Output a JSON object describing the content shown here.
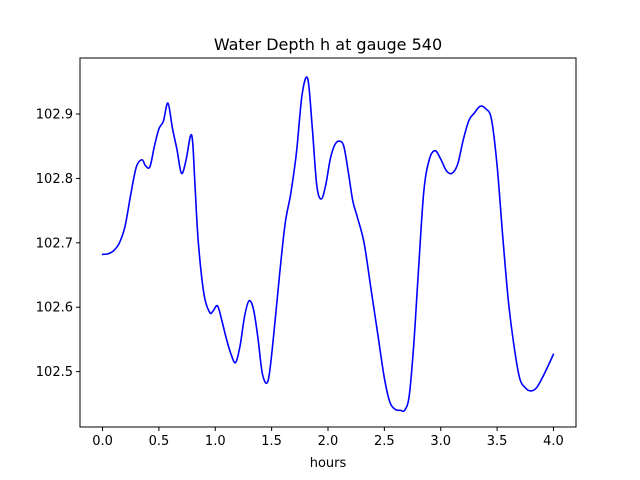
{
  "chart_data": {
    "type": "line",
    "title": "Water Depth h at gauge 540",
    "xlabel": "hours",
    "ylabel": "",
    "xlim": [
      -0.2,
      4.2
    ],
    "ylim": [
      102.414,
      102.987
    ],
    "x_ticks": [
      0.0,
      0.5,
      1.0,
      1.5,
      2.0,
      2.5,
      3.0,
      3.5,
      4.0
    ],
    "x_tick_labels": [
      "0.0",
      "0.5",
      "1.0",
      "1.5",
      "2.0",
      "2.5",
      "3.0",
      "3.5",
      "4.0"
    ],
    "y_ticks": [
      102.5,
      102.6,
      102.7,
      102.8,
      102.9
    ],
    "y_tick_labels": [
      "102.5",
      "102.6",
      "102.7",
      "102.8",
      "102.9"
    ],
    "grid": false,
    "legend": "none",
    "series": [
      {
        "color": "#0000ff",
        "x": [
          0.0,
          0.05,
          0.1,
          0.15,
          0.2,
          0.25,
          0.3,
          0.35,
          0.38,
          0.42,
          0.46,
          0.5,
          0.54,
          0.58,
          0.62,
          0.66,
          0.7,
          0.74,
          0.78,
          0.8,
          0.82,
          0.85,
          0.9,
          0.95,
          0.98,
          1.02,
          1.06,
          1.1,
          1.14,
          1.18,
          1.22,
          1.26,
          1.3,
          1.34,
          1.38,
          1.42,
          1.47,
          1.52,
          1.57,
          1.62,
          1.67,
          1.72,
          1.77,
          1.82,
          1.86,
          1.9,
          1.94,
          1.98,
          2.02,
          2.06,
          2.1,
          2.14,
          2.18,
          2.22,
          2.26,
          2.32,
          2.38,
          2.44,
          2.5,
          2.55,
          2.6,
          2.64,
          2.68,
          2.72,
          2.76,
          2.8,
          2.85,
          2.9,
          2.95,
          3.0,
          3.05,
          3.1,
          3.15,
          3.2,
          3.25,
          3.3,
          3.35,
          3.4,
          3.45,
          3.5,
          3.55,
          3.6,
          3.65,
          3.7,
          3.75,
          3.8,
          3.85,
          3.9,
          3.95,
          4.0
        ],
        "y": [
          102.682,
          102.683,
          102.688,
          102.7,
          102.726,
          102.775,
          102.818,
          102.829,
          102.82,
          102.818,
          102.85,
          102.877,
          102.889,
          102.917,
          102.878,
          102.845,
          102.808,
          102.828,
          102.866,
          102.855,
          102.79,
          102.7,
          102.62,
          102.592,
          102.594,
          102.602,
          102.578,
          102.55,
          102.527,
          102.514,
          102.54,
          102.586,
          102.61,
          102.596,
          102.55,
          102.495,
          102.487,
          102.56,
          102.65,
          102.73,
          102.777,
          102.84,
          102.93,
          102.955,
          102.88,
          102.79,
          102.768,
          102.79,
          102.83,
          102.852,
          102.858,
          102.85,
          102.81,
          102.765,
          102.74,
          102.7,
          102.63,
          102.56,
          102.49,
          102.452,
          102.441,
          102.44,
          102.44,
          102.462,
          102.54,
          102.65,
          102.78,
          102.83,
          102.843,
          102.83,
          102.812,
          102.808,
          102.822,
          102.86,
          102.89,
          102.902,
          102.912,
          102.908,
          102.892,
          102.82,
          102.71,
          102.61,
          102.54,
          102.49,
          102.475,
          102.47,
          102.475,
          102.49,
          102.508,
          102.527
        ]
      }
    ]
  }
}
